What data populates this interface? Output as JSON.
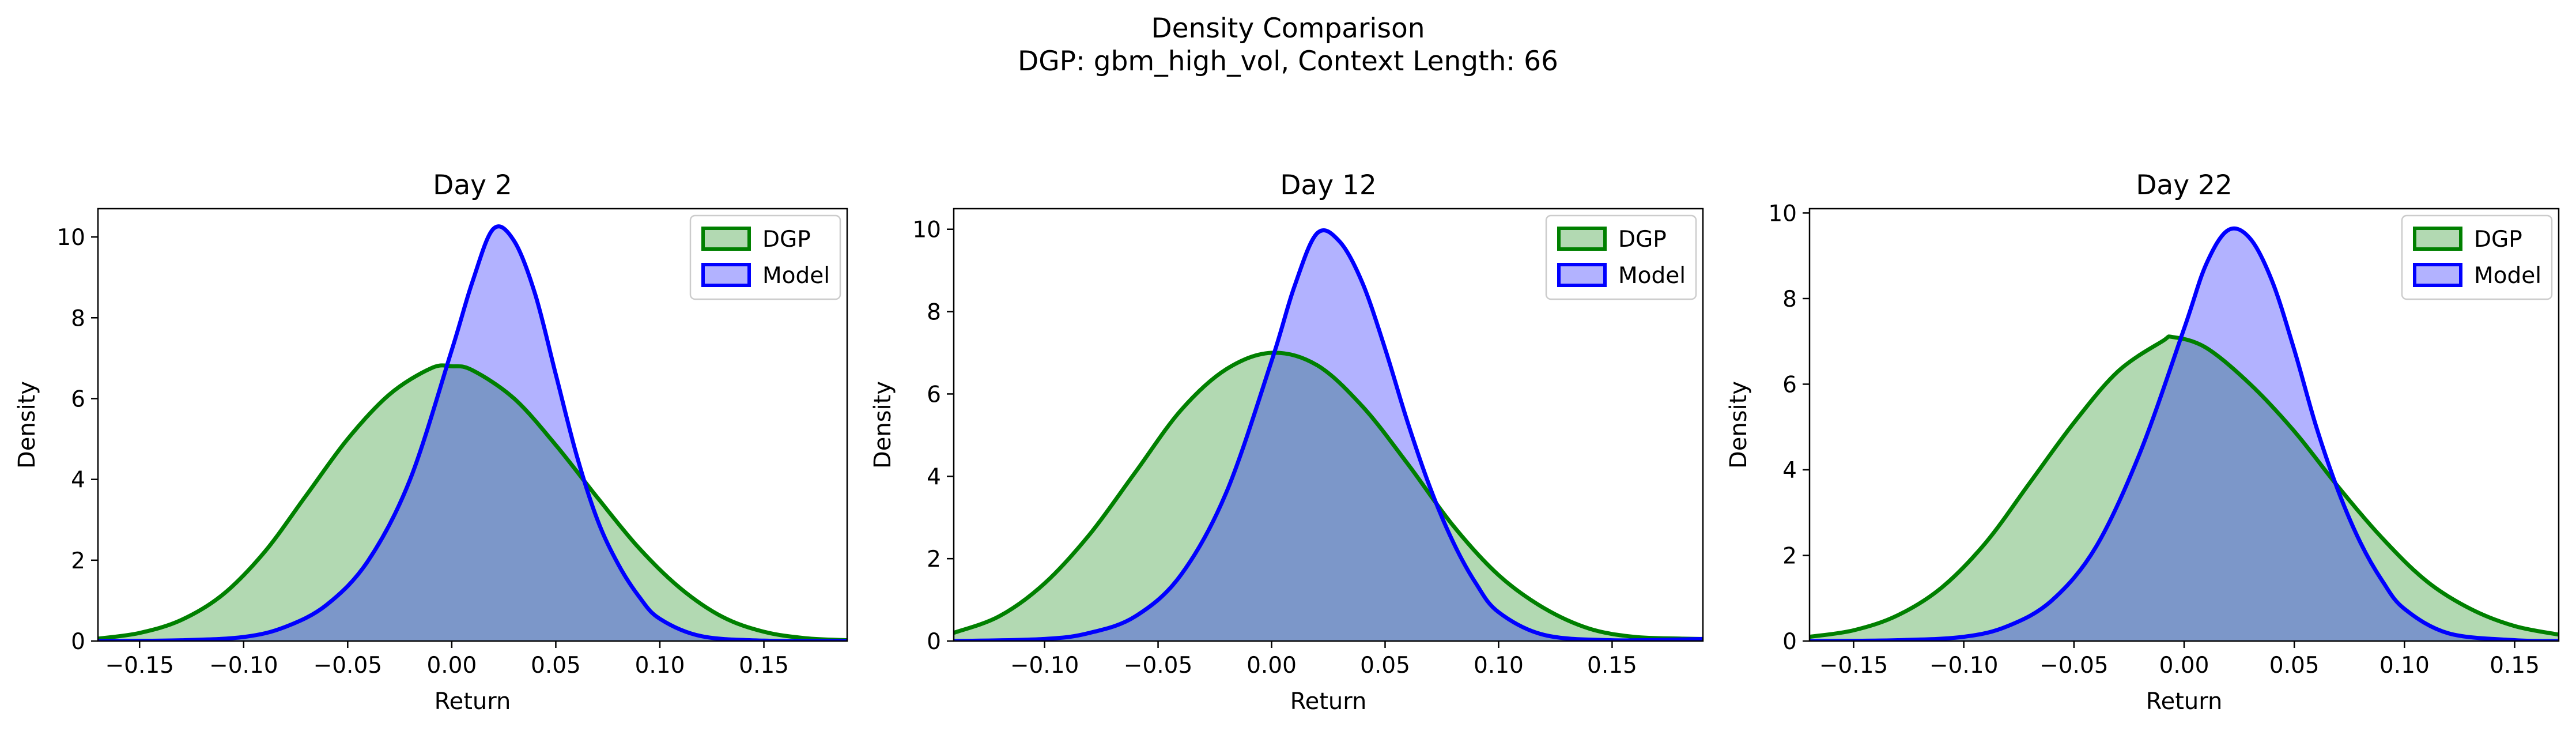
{
  "figure": {
    "title_line1": "Density Comparison",
    "title_line2": "DGP: gbm_high_vol, Context Length: 66"
  },
  "colors": {
    "dgp_line": "#008000",
    "dgp_fill": "#008000",
    "model_line": "#0000ff",
    "model_fill": "#0000ff",
    "fill_opacity": 0.3
  },
  "chart_data": [
    {
      "type": "area",
      "title": "Day 2",
      "xlabel": "Return",
      "ylabel": "Density",
      "xlim": [
        -0.17,
        0.19
      ],
      "ylim": [
        0,
        10.7
      ],
      "xticks": [
        -0.15,
        -0.1,
        -0.05,
        0.0,
        0.05,
        0.1,
        0.15
      ],
      "xtick_labels": [
        "−0.15",
        "−0.10",
        "−0.05",
        "0.00",
        "0.05",
        "0.10",
        "0.15"
      ],
      "yticks": [
        0,
        2,
        4,
        6,
        8,
        10
      ],
      "ytick_labels": [
        "0",
        "2",
        "4",
        "6",
        "8",
        "10"
      ],
      "legend": "upper right",
      "series": [
        {
          "name": "DGP",
          "x": [
            -0.17,
            -0.15,
            -0.13,
            -0.11,
            -0.09,
            -0.07,
            -0.05,
            -0.03,
            -0.01,
            0.0,
            0.01,
            0.03,
            0.05,
            0.07,
            0.09,
            0.11,
            0.13,
            0.15,
            0.17,
            0.19
          ],
          "y": [
            0.06,
            0.2,
            0.52,
            1.15,
            2.2,
            3.6,
            5.0,
            6.1,
            6.75,
            6.8,
            6.7,
            6.0,
            4.85,
            3.55,
            2.3,
            1.3,
            0.6,
            0.23,
            0.07,
            0.02
          ]
        },
        {
          "name": "Model",
          "x": [
            -0.17,
            -0.13,
            -0.1,
            -0.08,
            -0.06,
            -0.04,
            -0.02,
            0.0,
            0.01,
            0.02,
            0.03,
            0.04,
            0.05,
            0.06,
            0.07,
            0.08,
            0.09,
            0.1,
            0.12,
            0.15,
            0.19
          ],
          "y": [
            0.0,
            0.02,
            0.1,
            0.35,
            0.9,
            2.0,
            4.0,
            7.2,
            8.9,
            10.2,
            9.9,
            8.6,
            6.6,
            4.6,
            3.0,
            1.9,
            1.1,
            0.55,
            0.12,
            0.01,
            0.0
          ]
        }
      ]
    },
    {
      "type": "area",
      "title": "Day 12",
      "xlabel": "Return",
      "ylabel": "Density",
      "xlim": [
        -0.14,
        0.19
      ],
      "ylim": [
        0,
        10.5
      ],
      "xticks": [
        -0.1,
        -0.05,
        0.0,
        0.05,
        0.1,
        0.15
      ],
      "xtick_labels": [
        "−0.10",
        "−0.05",
        "0.00",
        "0.05",
        "0.10",
        "0.15"
      ],
      "yticks": [
        0,
        2,
        4,
        6,
        8,
        10
      ],
      "ytick_labels": [
        "0",
        "2",
        "4",
        "6",
        "8",
        "10"
      ],
      "legend": "upper right",
      "series": [
        {
          "name": "DGP",
          "x": [
            -0.14,
            -0.12,
            -0.1,
            -0.08,
            -0.06,
            -0.04,
            -0.02,
            0.0,
            0.02,
            0.04,
            0.06,
            0.08,
            0.1,
            0.12,
            0.14,
            0.16,
            0.18,
            0.19
          ],
          "y": [
            0.2,
            0.6,
            1.4,
            2.6,
            4.1,
            5.6,
            6.6,
            7.0,
            6.7,
            5.7,
            4.3,
            2.8,
            1.6,
            0.8,
            0.3,
            0.1,
            0.06,
            0.05
          ]
        },
        {
          "name": "Model",
          "x": [
            -0.14,
            -0.1,
            -0.08,
            -0.06,
            -0.04,
            -0.02,
            0.0,
            0.01,
            0.02,
            0.03,
            0.04,
            0.05,
            0.06,
            0.07,
            0.08,
            0.09,
            0.1,
            0.12,
            0.15,
            0.19
          ],
          "y": [
            0.0,
            0.05,
            0.2,
            0.6,
            1.6,
            3.6,
            6.8,
            8.6,
            9.9,
            9.7,
            8.7,
            7.1,
            5.3,
            3.7,
            2.4,
            1.4,
            0.7,
            0.15,
            0.02,
            0.05
          ]
        }
      ]
    },
    {
      "type": "area",
      "title": "Day 22",
      "xlabel": "Return",
      "ylabel": "Density",
      "xlim": [
        -0.17,
        0.17
      ],
      "ylim": [
        0,
        10.1
      ],
      "xticks": [
        -0.15,
        -0.1,
        -0.05,
        0.0,
        0.05,
        0.1,
        0.15
      ],
      "xtick_labels": [
        "−0.15",
        "−0.10",
        "−0.05",
        "0.00",
        "0.05",
        "0.10",
        "0.15"
      ],
      "yticks": [
        0,
        2,
        4,
        6,
        8,
        10
      ],
      "ytick_labels": [
        "0",
        "2",
        "4",
        "6",
        "8",
        "10"
      ],
      "legend": "upper right",
      "series": [
        {
          "name": "DGP",
          "x": [
            -0.17,
            -0.15,
            -0.13,
            -0.11,
            -0.09,
            -0.07,
            -0.05,
            -0.03,
            -0.01,
            -0.005,
            0.01,
            0.03,
            0.05,
            0.07,
            0.09,
            0.11,
            0.13,
            0.15,
            0.17
          ],
          "y": [
            0.1,
            0.25,
            0.6,
            1.25,
            2.3,
            3.7,
            5.1,
            6.3,
            7.0,
            7.1,
            6.85,
            6.0,
            4.9,
            3.6,
            2.4,
            1.4,
            0.75,
            0.35,
            0.15
          ]
        },
        {
          "name": "Model",
          "x": [
            -0.17,
            -0.13,
            -0.1,
            -0.08,
            -0.06,
            -0.04,
            -0.02,
            0.0,
            0.01,
            0.02,
            0.03,
            0.04,
            0.05,
            0.06,
            0.07,
            0.08,
            0.09,
            0.1,
            0.12,
            0.15,
            0.17
          ],
          "y": [
            0.0,
            0.02,
            0.1,
            0.35,
            0.95,
            2.2,
            4.4,
            7.3,
            8.8,
            9.6,
            9.4,
            8.4,
            6.8,
            5.0,
            3.5,
            2.3,
            1.4,
            0.75,
            0.18,
            0.02,
            0.0
          ]
        }
      ]
    }
  ]
}
